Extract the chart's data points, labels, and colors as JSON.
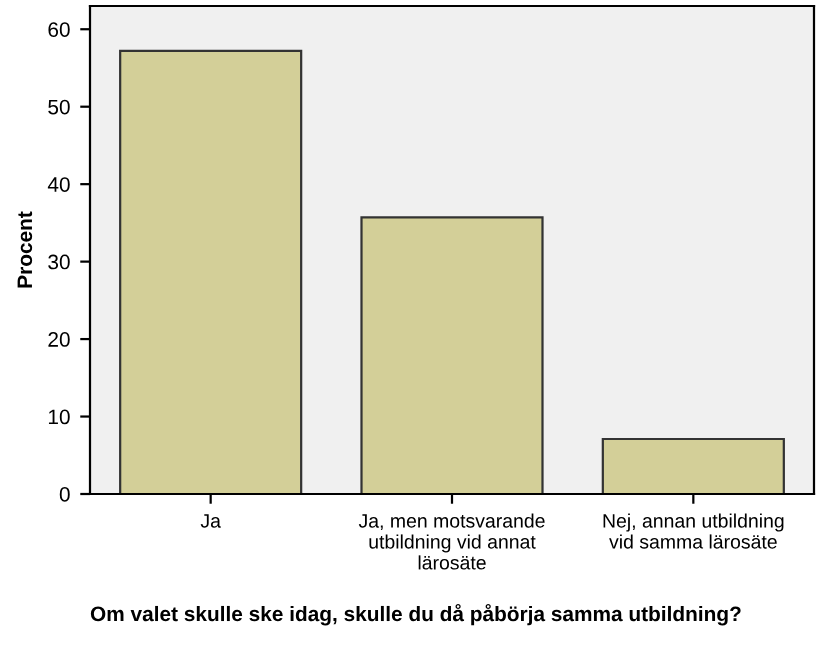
{
  "chart_data": {
    "type": "bar",
    "categories": [
      "Ja",
      "Ja, men motsvarande\nutbildning vid annat\nlärosäte",
      "Nej, annan utbildning\nvid samma lärosäte"
    ],
    "values": [
      57.2,
      35.7,
      7.1
    ],
    "color": "#d3cf98",
    "ylabel": "Procent",
    "xlabel": "Om valet skulle ske idag, skulle du då påbörja samma utbildning?",
    "ylim": [
      0,
      63
    ],
    "yticks": [
      0,
      10,
      20,
      30,
      40,
      50,
      60
    ],
    "grid": false
  }
}
